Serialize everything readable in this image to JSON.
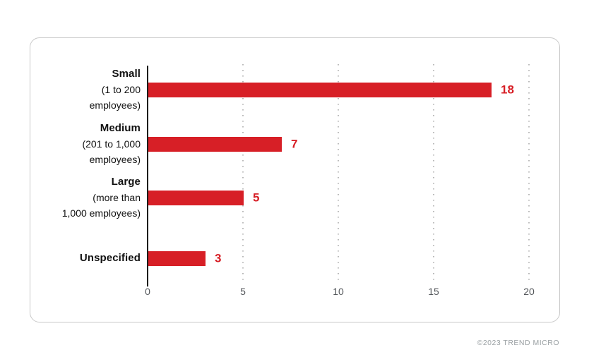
{
  "chart_data": {
    "type": "bar",
    "orientation": "horizontal",
    "title": "",
    "categories": [
      {
        "label": "Small",
        "sublabel": [
          "(1 to 200",
          "employees)"
        ]
      },
      {
        "label": "Medium",
        "sublabel": [
          "(201 to 1,000",
          "employees)"
        ]
      },
      {
        "label": "Large",
        "sublabel": [
          "(more than",
          "1,000 employees)"
        ]
      },
      {
        "label": "Unspecified",
        "sublabel": []
      }
    ],
    "values": [
      18,
      7,
      5,
      3
    ],
    "value_labels": [
      "18",
      "7",
      "5",
      "3"
    ],
    "x_ticks": [
      "0",
      "5",
      "10",
      "15",
      "20"
    ],
    "xlim": [
      0,
      20
    ],
    "grid": "dotted-vertical",
    "legend": "none",
    "bar_color": "#d71f26",
    "value_label_color": "#d71f26",
    "axis_line_color": "#1d1d1b",
    "tick_label_color": "#53565a"
  },
  "footer": {
    "copyright": "©2023 TREND MICRO"
  }
}
